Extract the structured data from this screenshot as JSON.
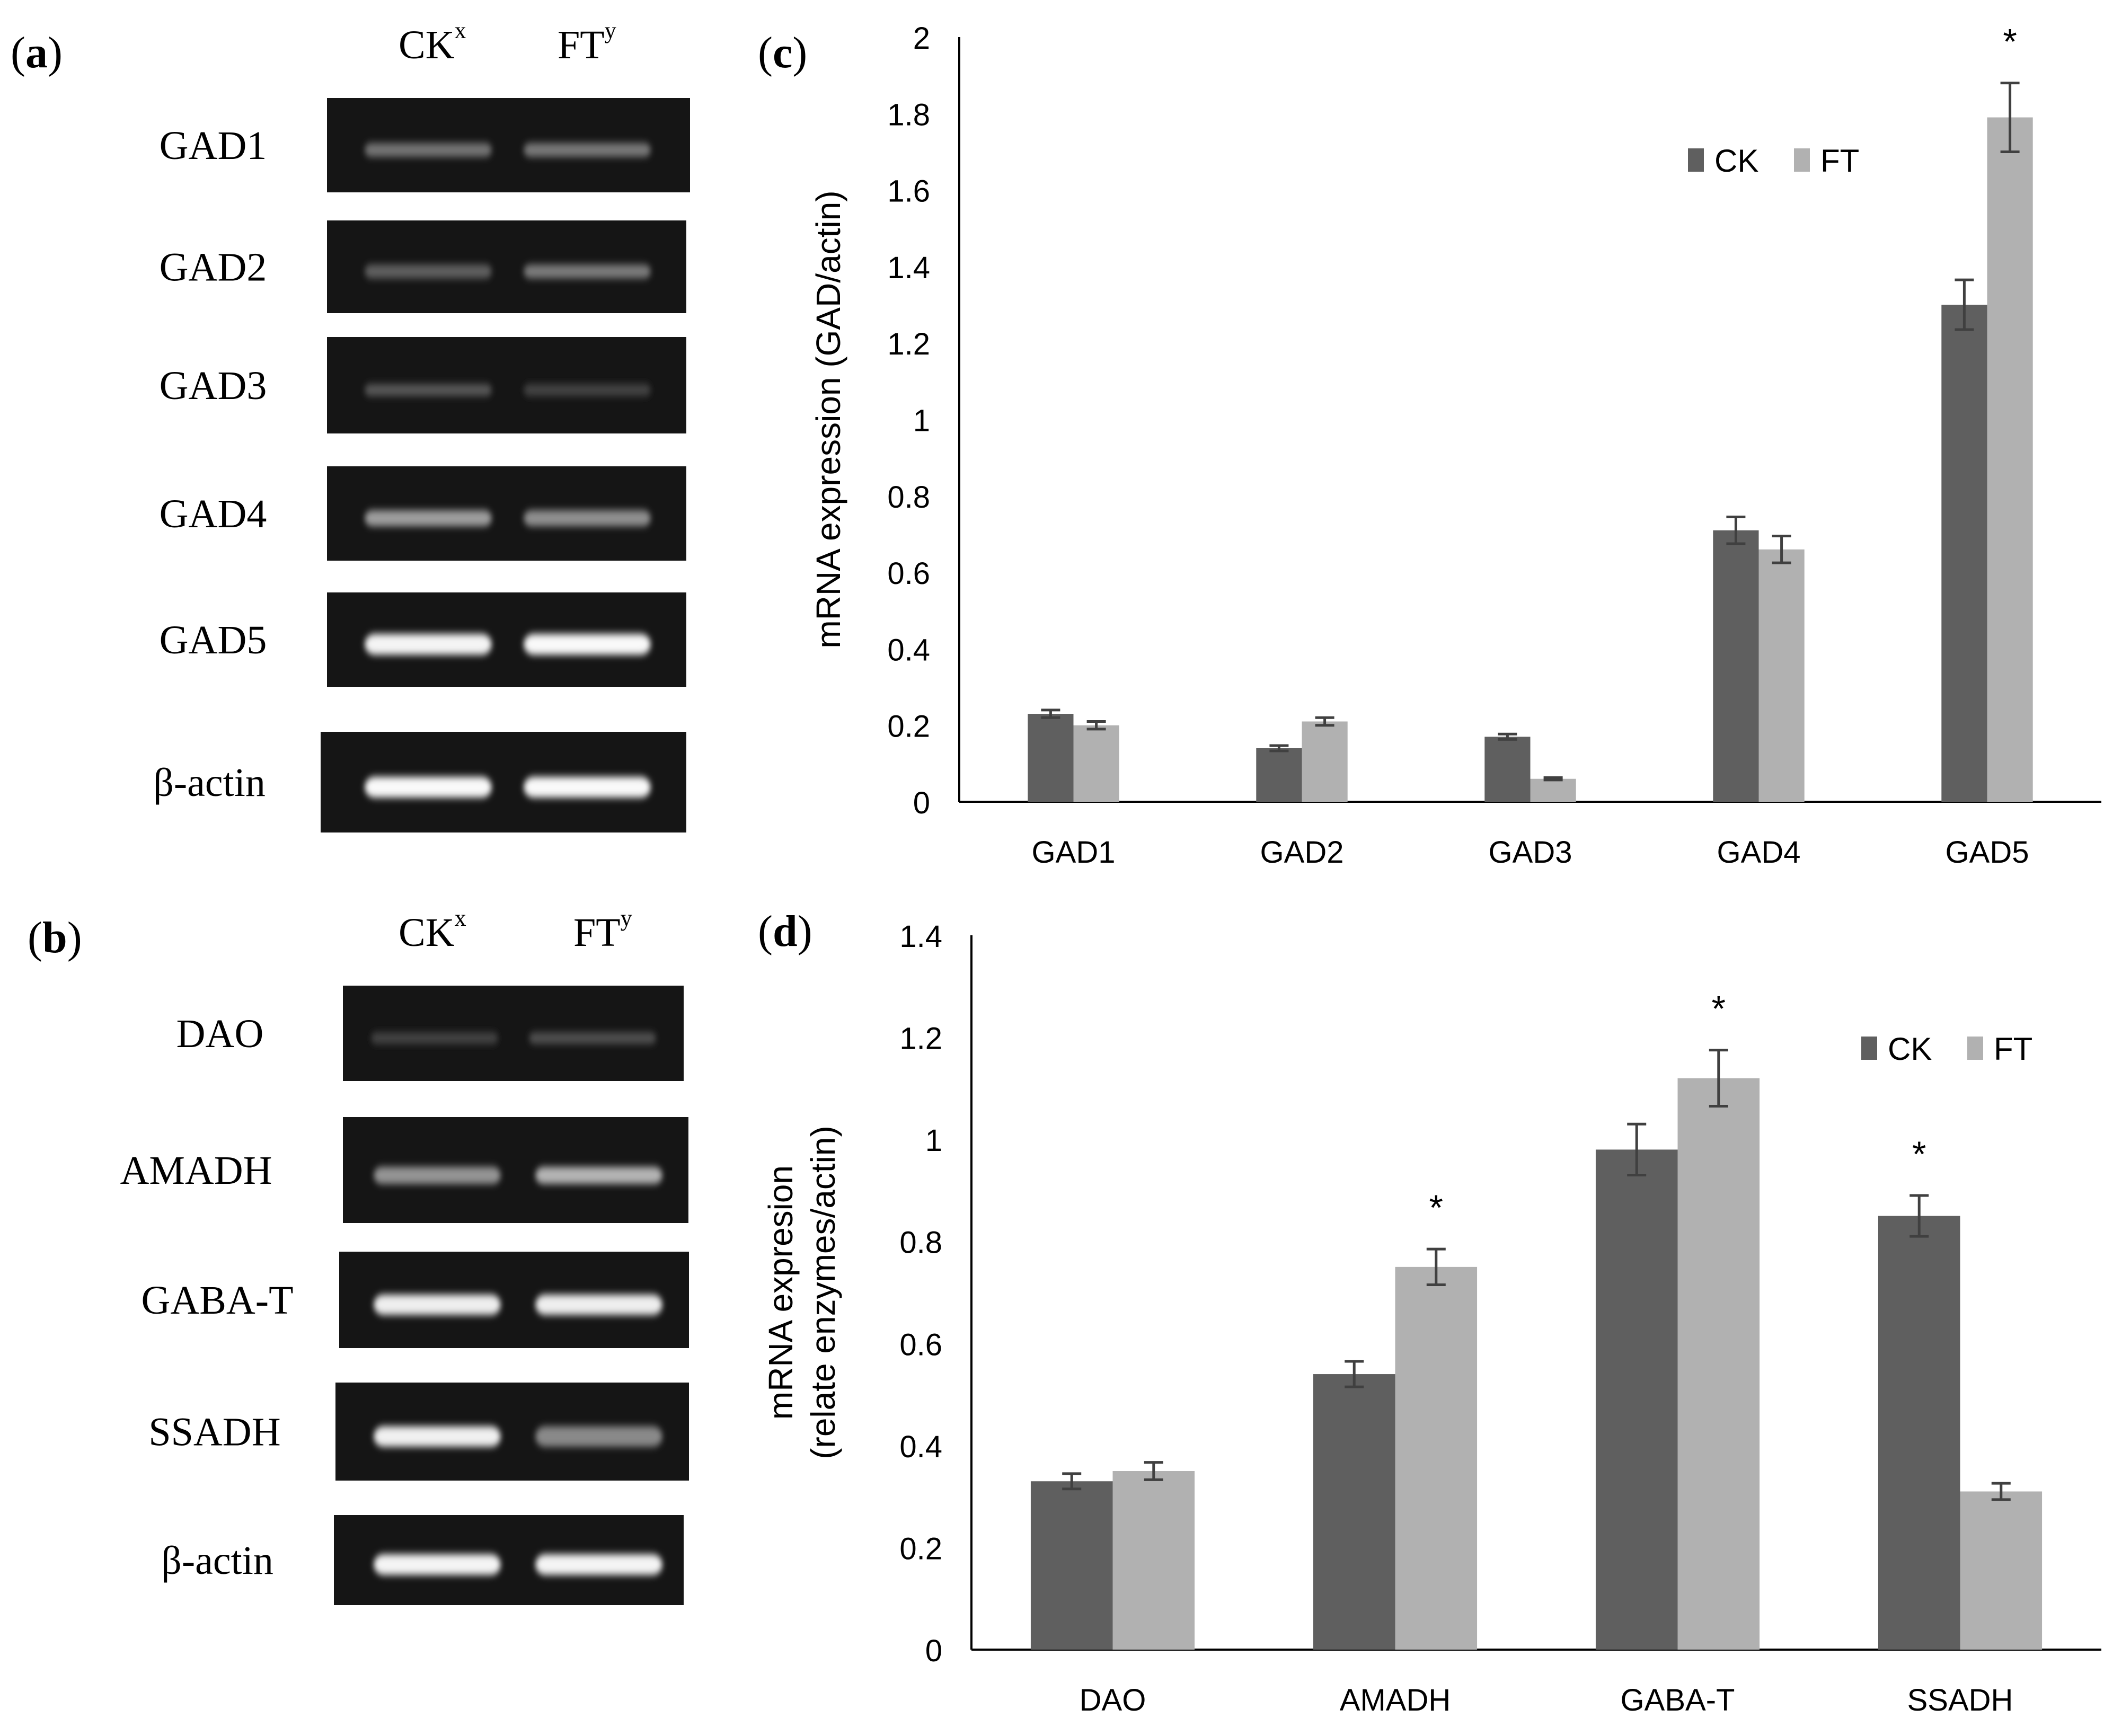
{
  "panels": {
    "a": {
      "label_open": "(",
      "label_letter": "a",
      "label_close": ")",
      "col1": "CK",
      "col1_sup": "x",
      "col2": "FT",
      "col2_sup": "y",
      "rows": [
        {
          "label": "GAD1",
          "ck": 0.35,
          "ft": 0.37
        },
        {
          "label": "GAD2",
          "ck": 0.25,
          "ft": 0.38
        },
        {
          "label": "GAD3",
          "ck": 0.22,
          "ft": 0.12
        },
        {
          "label": "GAD4",
          "ck": 0.55,
          "ft": 0.48
        },
        {
          "label": "GAD5",
          "ck": 0.95,
          "ft": 0.97
        },
        {
          "label": "β-actin",
          "ck": 0.97,
          "ft": 0.97
        }
      ]
    },
    "b": {
      "label_open": "(",
      "label_letter": "b",
      "label_close": ")",
      "col1": "CK",
      "col1_sup": "x",
      "col2": "FT",
      "col2_sup": "y",
      "rows": [
        {
          "label": "DAO",
          "ck": 0.12,
          "ft": 0.18
        },
        {
          "label": "AMADH",
          "ck": 0.5,
          "ft": 0.65
        },
        {
          "label": "GABA-T",
          "ck": 0.92,
          "ft": 0.92
        },
        {
          "label": "SSADH",
          "ck": 0.93,
          "ft": 0.45
        },
        {
          "label": "β-actin",
          "ck": 0.95,
          "ft": 0.95
        }
      ]
    },
    "c": {
      "label_open": "(",
      "label_letter": "c",
      "label_close": ")"
    },
    "d": {
      "label_open": "(",
      "label_letter": "d",
      "label_close": ")"
    }
  },
  "colors": {
    "ck": "#5f5f5f",
    "ft": "#b1b1b1",
    "axis": "#000000",
    "err": "#404040"
  },
  "chart_data": [
    {
      "id": "c",
      "type": "bar",
      "title": "",
      "categories": [
        "GAD1",
        "GAD2",
        "GAD3",
        "GAD4",
        "GAD5"
      ],
      "series": [
        {
          "name": "CK",
          "values": [
            0.23,
            0.14,
            0.17,
            0.71,
            1.3
          ],
          "errors": [
            0.01,
            0.007,
            0.007,
            0.035,
            0.065
          ]
        },
        {
          "name": "FT",
          "values": [
            0.2,
            0.21,
            0.06,
            0.66,
            1.79
          ],
          "errors": [
            0.01,
            0.01,
            0.003,
            0.035,
            0.09
          ]
        }
      ],
      "significance": [
        "",
        "",
        "",
        "",
        "*"
      ],
      "xlabel": "",
      "ylabel": "mRNA expression (GAD/actin)",
      "ylim": [
        0,
        2
      ],
      "yticks": [
        0,
        0.2,
        0.4,
        0.6,
        0.8,
        1,
        1.2,
        1.4,
        1.6,
        1.8,
        2
      ],
      "ytick_labels": [
        "0",
        "0.2",
        "0.4",
        "0.6",
        "0.8",
        "1",
        "1.2",
        "1.4",
        "1.6",
        "1.8",
        "2"
      ],
      "grid": false,
      "legend": {
        "position": "top-right",
        "entries": [
          "CK",
          "FT"
        ]
      }
    },
    {
      "id": "d",
      "type": "bar",
      "title": "",
      "categories": [
        "DAO",
        "AMADH",
        "GABA-T",
        "SSADH"
      ],
      "series": [
        {
          "name": "CK",
          "values": [
            0.33,
            0.54,
            0.98,
            0.85
          ],
          "errors": [
            0.015,
            0.025,
            0.05,
            0.04
          ]
        },
        {
          "name": "FT",
          "values": [
            0.35,
            0.75,
            1.12,
            0.31
          ],
          "errors": [
            0.017,
            0.035,
            0.055,
            0.016
          ]
        }
      ],
      "significance": [
        "",
        "*",
        "*",
        "*"
      ],
      "significance_series": [
        "",
        "FT",
        "FT",
        "CK"
      ],
      "xlabel": "",
      "ylabel": "mRNA expresion",
      "ylabel_line2": "(relate enzymes/actin)",
      "ylim": [
        0,
        1.4
      ],
      "yticks": [
        0,
        0.2,
        0.4,
        0.6,
        0.8,
        1,
        1.2,
        1.4
      ],
      "ytick_labels": [
        "0",
        "0.2",
        "0.4",
        "0.6",
        "0.8",
        "1",
        "1.2",
        "1.4"
      ],
      "grid": false,
      "legend": {
        "position": "top-right",
        "entries": [
          "CK",
          "FT"
        ]
      }
    }
  ]
}
